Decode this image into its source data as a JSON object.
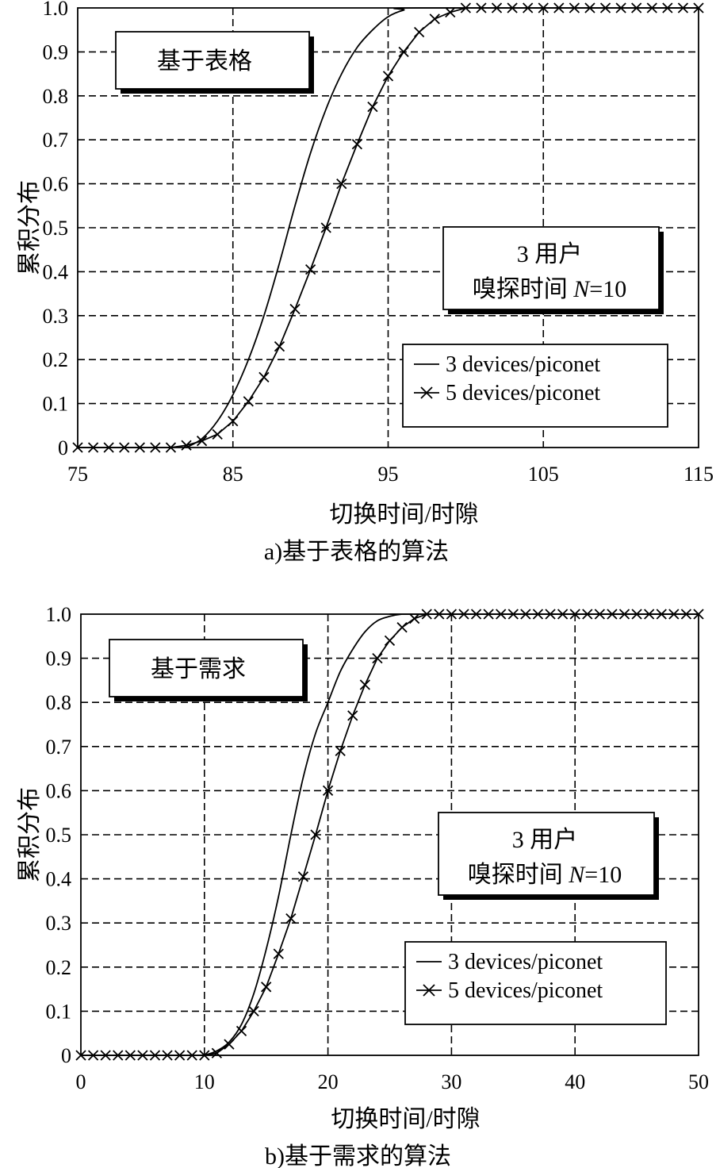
{
  "chart_data": [
    {
      "type": "line",
      "caption": "a)基于表格的算法",
      "box_title": "基于表格",
      "info_lines": [
        "3 用户",
        "嗅探时间 ",
        "N",
        "=10"
      ],
      "xlabel": "切换时间/时隙",
      "ylabel": "累积分布",
      "xlim": [
        75,
        115
      ],
      "ylim": [
        0,
        1.0
      ],
      "xticks": [
        75,
        85,
        95,
        105,
        115
      ],
      "xtick_labels": [
        "75",
        "85",
        "95",
        "105",
        "115"
      ],
      "yticks": [
        0,
        0.1,
        0.2,
        0.3,
        0.4,
        0.5,
        0.6,
        0.7,
        0.8,
        0.9,
        1.0
      ],
      "ytick_labels": [
        "0",
        "0.1",
        "0.2",
        "0.3",
        "0.4",
        "0.5",
        "0.6",
        "0.7",
        "0.8",
        "0.9",
        "1.0"
      ],
      "grid": true,
      "series": [
        {
          "name": "3 devices/piconet",
          "marker": "none",
          "x": [
            82,
            83,
            84,
            85,
            86,
            87,
            88,
            89,
            90,
            91,
            92,
            93,
            94,
            95,
            96,
            97,
            115
          ],
          "y": [
            0,
            0.02,
            0.06,
            0.12,
            0.2,
            0.3,
            0.42,
            0.55,
            0.67,
            0.77,
            0.85,
            0.91,
            0.95,
            0.98,
            0.995,
            1.0,
            1.0
          ]
        },
        {
          "name": "5 devices/piconet",
          "marker": "x",
          "x": [
            75,
            76,
            77,
            78,
            79,
            80,
            81,
            82,
            83,
            84,
            85,
            86,
            87,
            88,
            89,
            90,
            91,
            92,
            93,
            94,
            95,
            96,
            97,
            98,
            99,
            100,
            101,
            102,
            103,
            104,
            105,
            106,
            107,
            108,
            109,
            110,
            111,
            112,
            113,
            114,
            115
          ],
          "y": [
            0,
            0,
            0,
            0,
            0,
            0,
            0,
            0.005,
            0.015,
            0.03,
            0.06,
            0.105,
            0.16,
            0.23,
            0.315,
            0.405,
            0.5,
            0.6,
            0.69,
            0.775,
            0.845,
            0.9,
            0.945,
            0.975,
            0.99,
            1.0,
            1.0,
            1.0,
            1.0,
            1.0,
            1.0,
            1.0,
            1.0,
            1.0,
            1.0,
            1.0,
            1.0,
            1.0,
            1.0,
            1.0,
            1.0
          ]
        }
      ]
    },
    {
      "type": "line",
      "caption": "b)基于需求的算法",
      "box_title": "基于需求",
      "info_lines": [
        "3 用户",
        "嗅探时间 ",
        "N",
        "=10"
      ],
      "xlabel": "切换时间/时隙",
      "ylabel": "累积分布",
      "xlim": [
        0,
        50
      ],
      "ylim": [
        0,
        1.0
      ],
      "xticks": [
        0,
        10,
        20,
        30,
        40,
        50
      ],
      "xtick_labels": [
        "0",
        "10",
        "20",
        "30",
        "40",
        "50"
      ],
      "yticks": [
        0,
        0.1,
        0.2,
        0.3,
        0.4,
        0.5,
        0.6,
        0.7,
        0.8,
        0.9,
        1.0
      ],
      "ytick_labels": [
        "0",
        "0.1",
        "0.2",
        "0.3",
        "0.4",
        "0.5",
        "0.6",
        "0.7",
        "0.8",
        "0.9",
        "1.0"
      ],
      "grid": true,
      "series": [
        {
          "name": "3 devices/piconet",
          "marker": "none",
          "x": [
            10,
            11,
            12,
            13,
            14,
            15,
            16,
            17,
            18,
            19,
            20,
            21,
            22,
            23,
            24,
            25,
            26,
            27,
            50
          ],
          "y": [
            0,
            0.01,
            0.03,
            0.07,
            0.14,
            0.24,
            0.36,
            0.5,
            0.63,
            0.73,
            0.8,
            0.87,
            0.92,
            0.96,
            0.985,
            0.995,
            1.0,
            1.0,
            1.0
          ]
        },
        {
          "name": "5 devices/piconet",
          "marker": "x",
          "x": [
            0,
            1,
            2,
            3,
            4,
            5,
            6,
            7,
            8,
            9,
            10,
            11,
            12,
            13,
            14,
            15,
            16,
            17,
            18,
            19,
            20,
            21,
            22,
            23,
            24,
            25,
            26,
            27,
            28,
            29,
            30,
            31,
            32,
            33,
            34,
            35,
            36,
            37,
            38,
            39,
            40,
            41,
            42,
            43,
            44,
            45,
            46,
            47,
            48,
            49,
            50
          ],
          "y": [
            0,
            0,
            0,
            0,
            0,
            0,
            0,
            0,
            0,
            0,
            0,
            0.005,
            0.025,
            0.055,
            0.1,
            0.155,
            0.23,
            0.31,
            0.405,
            0.5,
            0.6,
            0.69,
            0.77,
            0.84,
            0.9,
            0.94,
            0.97,
            0.99,
            1.0,
            1.0,
            1.0,
            1.0,
            1.0,
            1.0,
            1.0,
            1.0,
            1.0,
            1.0,
            1.0,
            1.0,
            1.0,
            1.0,
            1.0,
            1.0,
            1.0,
            1.0,
            1.0,
            1.0,
            1.0,
            1.0,
            1.0
          ]
        }
      ]
    }
  ]
}
